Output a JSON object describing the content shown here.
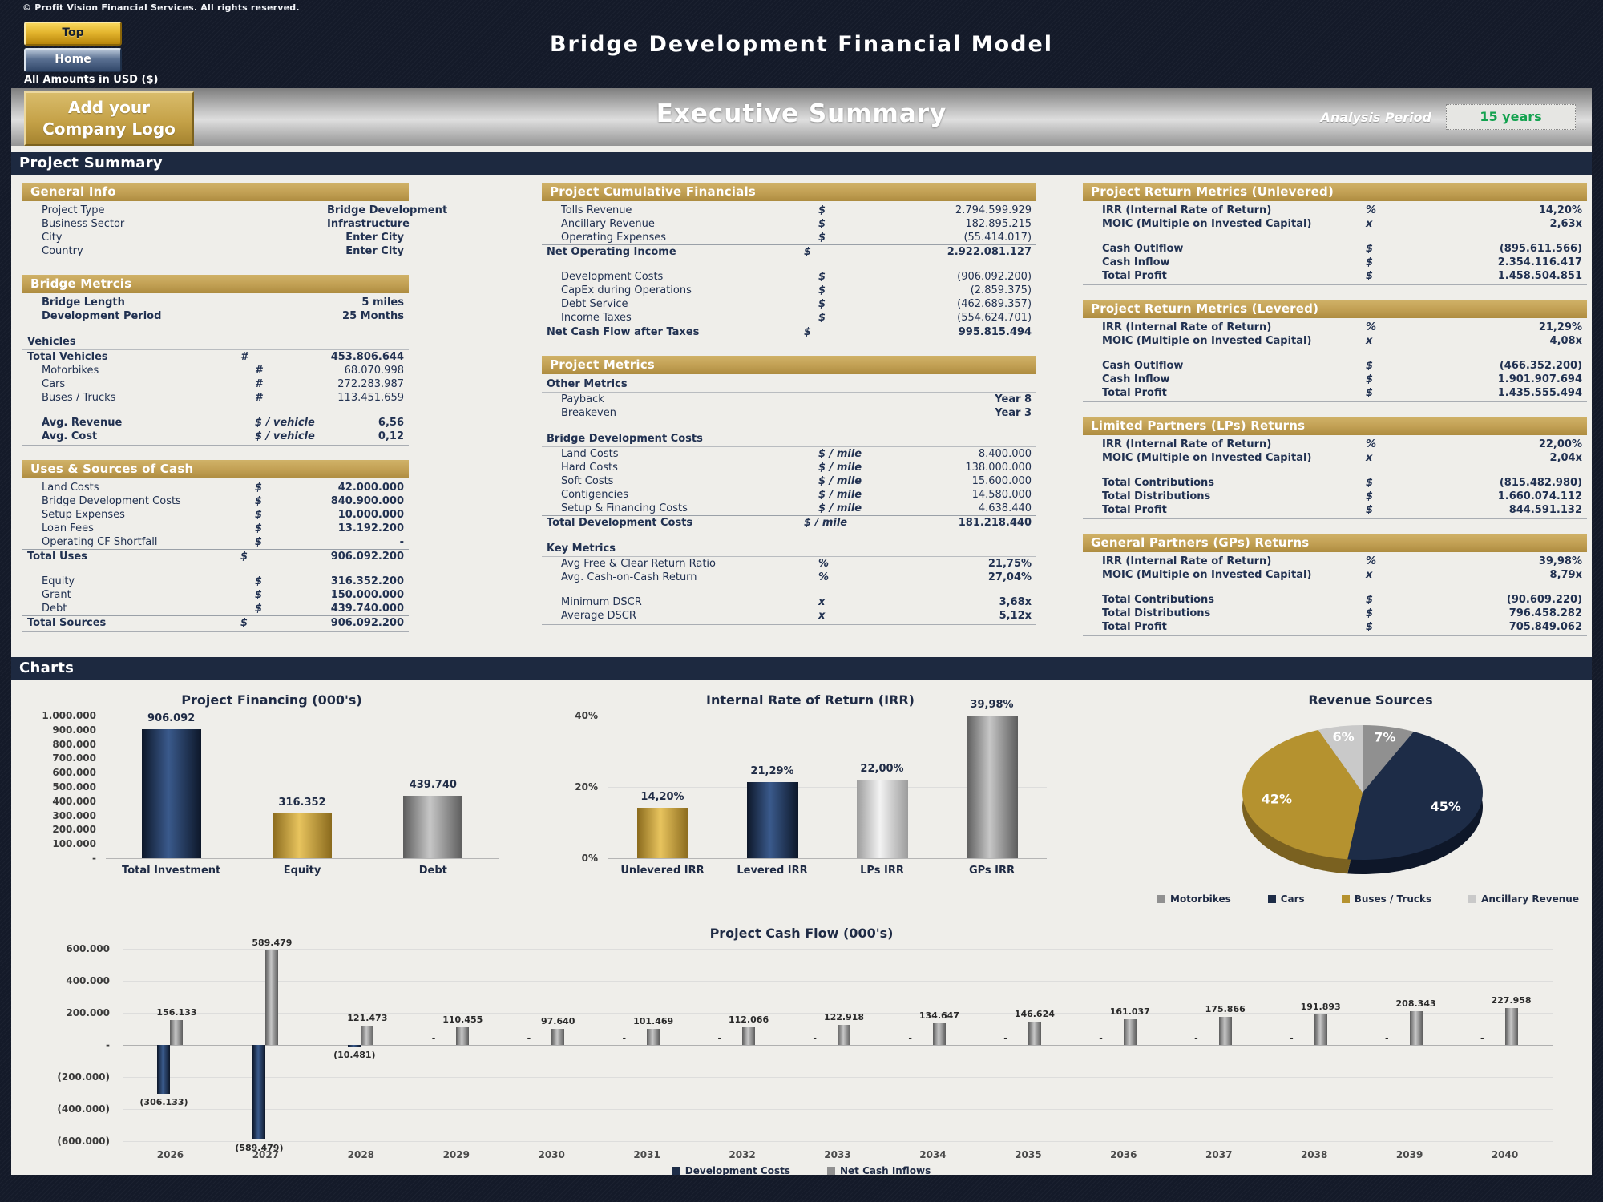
{
  "header": {
    "copyright": "© Profit Vision Financial Services. All rights reserved.",
    "top_button": "Top",
    "home_button": "Home",
    "title": "Bridge Development Financial Model",
    "amounts_note": "All Amounts in  USD ($)",
    "exec_title": "Executive Summary",
    "logo_line1": "Add your",
    "logo_line2": "Company Logo",
    "analysis_label": "Analysis Period",
    "analysis_value": "15 years"
  },
  "sections": {
    "summary": "Project Summary",
    "charts": "Charts"
  },
  "panels": {
    "left": [
      {
        "id": "general-info",
        "title": "General Info",
        "rows": [
          {
            "l": "Project Type",
            "v": "Bridge Development",
            "ind": 1,
            "bv": 1
          },
          {
            "l": "Business Sector",
            "v": "Infrastructure",
            "ind": 1,
            "bv": 1
          },
          {
            "l": "City",
            "v": "Enter City",
            "ind": 1,
            "bv": 1
          },
          {
            "l": "Country",
            "v": "Enter City",
            "ind": 1,
            "bv": 1
          }
        ]
      },
      {
        "id": "bridge-metrics",
        "title": "Bridge Metrcis",
        "rows": [
          {
            "l": "Bridge Length",
            "v": "5 miles",
            "ind": 1,
            "bl": 1,
            "bv": 1
          },
          {
            "l": "Development Period",
            "v": "25 Months",
            "ind": 1,
            "bl": 1,
            "bv": 1
          },
          {
            "t": "gap"
          },
          {
            "t": "sub",
            "l": "Vehicles"
          },
          {
            "l": "Total Vehicles",
            "u": "#",
            "v": "453.806.644",
            "ind": 0,
            "bl": 1,
            "bv": 1
          },
          {
            "l": "Motorbikes",
            "u": "#",
            "v": "68.070.998",
            "ind": 1
          },
          {
            "l": "Cars",
            "u": "#",
            "v": "272.283.987",
            "ind": 1
          },
          {
            "l": "Buses / Trucks",
            "u": "#",
            "v": "113.451.659",
            "ind": 1
          },
          {
            "t": "gap"
          },
          {
            "l": "Avg. Revenue",
            "u": "$ / vehicle",
            "v": "6,56",
            "ind": 1,
            "bl": 1,
            "bv": 1
          },
          {
            "l": "Avg. Cost",
            "u": "$ / vehicle",
            "v": "0,12",
            "ind": 1,
            "bl": 1,
            "bv": 1
          }
        ]
      },
      {
        "id": "uses-sources",
        "title": "Uses & Sources of Cash",
        "rows": [
          {
            "l": "Land Costs",
            "u": "$",
            "v": "42.000.000",
            "ind": 1,
            "bv": 1
          },
          {
            "l": "Bridge Development Costs",
            "u": "$",
            "v": "840.900.000",
            "ind": 1,
            "bv": 1
          },
          {
            "l": "Setup Expenses",
            "u": "$",
            "v": "10.000.000",
            "ind": 1,
            "bv": 1
          },
          {
            "l": "Loan Fees",
            "u": "$",
            "v": "13.192.200",
            "ind": 1,
            "bv": 1
          },
          {
            "l": "Operating CF Shortfall",
            "u": "$",
            "v": "-",
            "ind": 1,
            "bv": 1
          },
          {
            "l": "Total Uses",
            "u": "$",
            "v": "906.092.200",
            "ind": 0,
            "bl": 1,
            "bv": 1,
            "tb": 1
          },
          {
            "t": "gap"
          },
          {
            "l": "Equity",
            "u": "$",
            "v": "316.352.200",
            "ind": 1,
            "bv": 1
          },
          {
            "l": "Grant",
            "u": "$",
            "v": "150.000.000",
            "ind": 1,
            "bv": 1
          },
          {
            "l": "Debt",
            "u": "$",
            "v": "439.740.000",
            "ind": 1,
            "bv": 1
          },
          {
            "l": "Total Sources",
            "u": "$",
            "v": "906.092.200",
            "ind": 0,
            "bl": 1,
            "bv": 1,
            "tb": 1
          }
        ]
      }
    ],
    "mid": [
      {
        "id": "cumulative-financials",
        "title": "Project Cumulative Financials",
        "rows": [
          {
            "l": "Tolls Revenue",
            "u": "$",
            "v": "2.794.599.929",
            "ind": 1
          },
          {
            "l": "Ancillary Revenue",
            "u": "$",
            "v": "182.895.215",
            "ind": 1
          },
          {
            "l": "Operating Expenses",
            "u": "$",
            "v": "(55.414.017)",
            "ind": 1
          },
          {
            "l": "Net Operating Income",
            "u": "$",
            "v": "2.922.081.127",
            "ind": 0,
            "bl": 1,
            "bv": 1,
            "tb": 1
          },
          {
            "t": "gap"
          },
          {
            "l": "Development Costs",
            "u": "$",
            "v": "(906.092.200)",
            "ind": 1
          },
          {
            "l": "CapEx during Operations",
            "u": "$",
            "v": "(2.859.375)",
            "ind": 1
          },
          {
            "l": "Debt Service",
            "u": "$",
            "v": "(462.689.357)",
            "ind": 1
          },
          {
            "l": "Income Taxes",
            "u": "$",
            "v": "(554.624.701)",
            "ind": 1
          },
          {
            "l": "Net Cash Flow after Taxes",
            "u": "$",
            "v": "995.815.494",
            "ind": 0,
            "bl": 1,
            "bv": 1,
            "tb": 1
          }
        ]
      },
      {
        "id": "project-metrics",
        "title": "Project Metrics",
        "rows": [
          {
            "t": "sub",
            "l": "Other Metrics"
          },
          {
            "l": "Payback",
            "v": "Year 8",
            "ind": 1,
            "bv": 1
          },
          {
            "l": "Breakeven",
            "v": "Year 3",
            "ind": 1,
            "bv": 1
          },
          {
            "t": "gap"
          },
          {
            "t": "sub",
            "l": "Bridge Development Costs"
          },
          {
            "l": "Land Costs",
            "u": "$ / mile",
            "v": "8.400.000",
            "ind": 1
          },
          {
            "l": "Hard Costs",
            "u": "$ / mile",
            "v": "138.000.000",
            "ind": 1
          },
          {
            "l": "Soft Costs",
            "u": "$ / mile",
            "v": "15.600.000",
            "ind": 1
          },
          {
            "l": "Contigencies",
            "u": "$ / mile",
            "v": "14.580.000",
            "ind": 1
          },
          {
            "l": "Setup & Financing Costs",
            "u": "$ / mile",
            "v": "4.638.440",
            "ind": 1
          },
          {
            "l": "Total Development Costs",
            "u": "$ / mile",
            "v": "181.218.440",
            "ind": 0,
            "bl": 1,
            "bv": 1,
            "tb": 1
          },
          {
            "t": "gap"
          },
          {
            "t": "sub",
            "l": "Key Metrics"
          },
          {
            "l": "Avg Free & Clear Return Ratio",
            "u": "%",
            "v": "21,75%",
            "ind": 1,
            "bv": 1
          },
          {
            "l": "Avg. Cash-on-Cash Return",
            "u": "%",
            "v": "27,04%",
            "ind": 1,
            "bv": 1
          },
          {
            "t": "gap"
          },
          {
            "l": "Minimum DSCR",
            "u": "x",
            "v": "3,68x",
            "ind": 1,
            "bv": 1
          },
          {
            "l": "Average DSCR",
            "u": "x",
            "v": "5,12x",
            "ind": 1,
            "bv": 1
          }
        ]
      }
    ],
    "right": [
      {
        "id": "return-unlevered",
        "title": "Project Return Metrics (Unlevered)",
        "rows": [
          {
            "l": "IRR (Internal Rate of Return)",
            "u": "%",
            "v": "14,20%",
            "ind": 1,
            "bl": 1,
            "bv": 1
          },
          {
            "l": "MOIC (Multiple on Invested Capital)",
            "u": "x",
            "v": "2,63x",
            "ind": 1,
            "bl": 1,
            "bv": 1
          },
          {
            "t": "gap"
          },
          {
            "l": "Cash Outlflow",
            "u": "$",
            "v": "(895.611.566)",
            "ind": 1,
            "bl": 1,
            "bv": 1
          },
          {
            "l": "Cash Inflow",
            "u": "$",
            "v": "2.354.116.417",
            "ind": 1,
            "bl": 1,
            "bv": 1
          },
          {
            "l": "Total Profit",
            "u": "$",
            "v": "1.458.504.851",
            "ind": 1,
            "bl": 1,
            "bv": 1
          }
        ]
      },
      {
        "id": "return-levered",
        "title": "Project Return Metrics (Levered)",
        "rows": [
          {
            "l": "IRR (Internal Rate of Return)",
            "u": "%",
            "v": "21,29%",
            "ind": 1,
            "bl": 1,
            "bv": 1
          },
          {
            "l": "MOIC (Multiple on Invested Capital)",
            "u": "x",
            "v": "4,08x",
            "ind": 1,
            "bl": 1,
            "bv": 1
          },
          {
            "t": "gap"
          },
          {
            "l": "Cash Outlflow",
            "u": "$",
            "v": "(466.352.200)",
            "ind": 1,
            "bl": 1,
            "bv": 1
          },
          {
            "l": "Cash Inflow",
            "u": "$",
            "v": "1.901.907.694",
            "ind": 1,
            "bl": 1,
            "bv": 1
          },
          {
            "l": "Total Profit",
            "u": "$",
            "v": "1.435.555.494",
            "ind": 1,
            "bl": 1,
            "bv": 1
          }
        ]
      },
      {
        "id": "lps-returns",
        "title": "Limited Partners (LPs) Returns",
        "rows": [
          {
            "l": "IRR (Internal Rate of Return)",
            "u": "%",
            "v": "22,00%",
            "ind": 1,
            "bl": 1,
            "bv": 1
          },
          {
            "l": "MOIC (Multiple on Invested Capital)",
            "u": "x",
            "v": "2,04x",
            "ind": 1,
            "bl": 1,
            "bv": 1
          },
          {
            "t": "gap"
          },
          {
            "l": "Total Contributions",
            "u": "$",
            "v": "(815.482.980)",
            "ind": 1,
            "bl": 1,
            "bv": 1
          },
          {
            "l": "Total Distributions",
            "u": "$",
            "v": "1.660.074.112",
            "ind": 1,
            "bl": 1,
            "bv": 1
          },
          {
            "l": "Total Profit",
            "u": "$",
            "v": "844.591.132",
            "ind": 1,
            "bl": 1,
            "bv": 1
          }
        ]
      },
      {
        "id": "gps-returns",
        "title": "General Partners (GPs) Returns",
        "rows": [
          {
            "l": "IRR (Internal Rate of Return)",
            "u": "%",
            "v": "39,98%",
            "ind": 1,
            "bl": 1,
            "bv": 1
          },
          {
            "l": "MOIC (Multiple on Invested Capital)",
            "u": "x",
            "v": "8,79x",
            "ind": 1,
            "bl": 1,
            "bv": 1
          },
          {
            "t": "gap"
          },
          {
            "l": "Total Contributions",
            "u": "$",
            "v": "(90.609.220)",
            "ind": 1,
            "bl": 1,
            "bv": 1
          },
          {
            "l": "Total Distributions",
            "u": "$",
            "v": "796.458.282",
            "ind": 1,
            "bl": 1,
            "bv": 1
          },
          {
            "l": "Total Profit",
            "u": "$",
            "v": "705.849.062",
            "ind": 1,
            "bl": 1,
            "bv": 1
          }
        ]
      }
    ]
  },
  "chart_data": [
    {
      "type": "bar",
      "title": "Project Financing (000's)",
      "categories": [
        "Total Investment",
        "Equity",
        "Debt"
      ],
      "values": [
        906092,
        316352,
        439740
      ],
      "labels": [
        "906.092",
        "316.352",
        "439.740"
      ],
      "bar_colors": [
        "navy",
        "gold",
        "gray"
      ],
      "ylim": [
        0,
        1000000
      ],
      "ytick_labels": [
        "1.000.000",
        "900.000",
        "800.000",
        "700.000",
        "600.000",
        "500.000",
        "400.000",
        "300.000",
        "200.000",
        "100.000",
        "-"
      ],
      "grid": false,
      "legend_position": "none"
    },
    {
      "type": "bar",
      "title": "Internal Rate of Return (IRR)",
      "categories": [
        "Unlevered IRR",
        "Levered IRR",
        "LPs IRR",
        "GPs IRR"
      ],
      "values": [
        14.2,
        21.29,
        22.0,
        39.98
      ],
      "labels": [
        "14,20%",
        "21,29%",
        "22,00%",
        "39,98%"
      ],
      "bar_colors": [
        "gold",
        "navy",
        "silver",
        "gray"
      ],
      "ylim": [
        0,
        40
      ],
      "ytick_labels": [
        "40%",
        "20%",
        "0%"
      ],
      "grid": true,
      "legend_position": "none"
    },
    {
      "type": "pie",
      "title": "Revenue Sources",
      "slices": [
        {
          "label": "Motorbikes",
          "pct": 7,
          "color": "gray"
        },
        {
          "label": "Cars",
          "pct": 45,
          "color": "navy"
        },
        {
          "label": "Buses / Trucks",
          "pct": 42,
          "color": "gold"
        },
        {
          "label": "Ancillary Revenue",
          "pct": 6,
          "color": "silver"
        }
      ],
      "legend_position": "bottom"
    },
    {
      "type": "bar",
      "title": "Project Cash Flow (000's)",
      "categories": [
        "2026",
        "2027",
        "2028",
        "2029",
        "2030",
        "2031",
        "2032",
        "2033",
        "2034",
        "2035",
        "2036",
        "2037",
        "2038",
        "2039",
        "2040"
      ],
      "series": [
        {
          "name": "Development Costs",
          "color": "navy",
          "values": [
            -306133,
            -589479,
            -10481,
            0,
            0,
            0,
            0,
            0,
            0,
            0,
            0,
            0,
            0,
            0,
            0
          ],
          "labels": [
            "(306.133)",
            "(589.479)",
            "(10.481)",
            "-",
            "-",
            "-",
            "-",
            "-",
            "-",
            "-",
            "-",
            "-",
            "-",
            "-",
            "-"
          ]
        },
        {
          "name": "Net Cash Inflows",
          "color": "gray",
          "values": [
            156133,
            589479,
            121473,
            110455,
            97640,
            101469,
            112066,
            122918,
            134647,
            146624,
            161037,
            175866,
            191893,
            208343,
            227958
          ],
          "labels": [
            "156.133",
            "589.479",
            "121.473",
            "110.455",
            "97.640",
            "101.469",
            "112.066",
            "122.918",
            "134.647",
            "146.624",
            "161.037",
            "175.866",
            "191.893",
            "208.343",
            "227.958"
          ]
        }
      ],
      "ylim": [
        -600000,
        600000
      ],
      "ytick_labels": [
        "600.000",
        "400.000",
        "200.000",
        "-",
        "(200.000)",
        "(400.000)",
        "(600.000)"
      ],
      "grid": true,
      "legend_position": "bottom"
    }
  ],
  "colors": {
    "accent_gold": "#c3a155",
    "header_navy": "#1d2940",
    "positive_green": "#13a24f",
    "pie": {
      "navy": "#1d2c47",
      "gold": "#b5922f",
      "gray": "#909090",
      "silver": "#c9c9c9"
    },
    "pie_dark": {
      "navy": "#0e1729",
      "gold": "#7a6120",
      "gray": "#636363",
      "silver": "#989898"
    },
    "bar_gradients": {
      "navy": [
        "#0d1729",
        "#3a5a8c"
      ],
      "gold": [
        "#8a6a1d",
        "#e8c45e"
      ],
      "gray": [
        "#5c5c5c",
        "#c7c7c7"
      ],
      "silver": [
        "#9c9c9c",
        "#f3f3f3"
      ]
    }
  }
}
